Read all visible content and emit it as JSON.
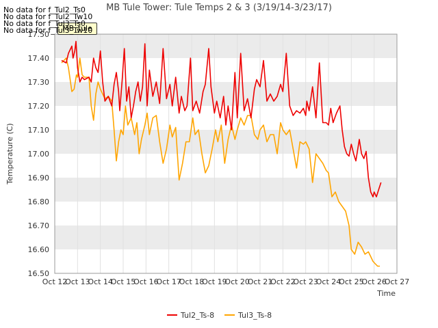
{
  "no_data_messages": [
    "No data for f_Tul2_Ts0",
    "No data for f_Tul2_Tw10",
    "No data for f_Tul3_Ts0",
    "No data for f_Tul3_Tw10"
  ],
  "tooltip": "MB_tule",
  "colors": {
    "tul2": "#ee0000",
    "tul3": "#ffa500",
    "band": "#ebebeb",
    "grid": "#ffffff",
    "axis": "#999999"
  },
  "chart_data": {
    "type": "line",
    "title": "MB Tule Tower: Tule Temps 2 & 3 (3/19/14-3/23/17)",
    "xlabel": "Time",
    "ylabel": "Temperature (C)",
    "ylim": [
      16.5,
      17.5
    ],
    "xlim": [
      0,
      15
    ],
    "x_ticks": [
      "Oct 12",
      "Oct 13",
      "Oct 14",
      "Oct 15",
      "Oct 16",
      "Oct 17",
      "Oct 18",
      "Oct 19",
      "Oct 20",
      "Oct 21",
      "Oct 22",
      "Oct 23",
      "Oct 24",
      "Oct 25",
      "Oct 26",
      "Oct 27"
    ],
    "y_ticks": [
      "16.50",
      "16.60",
      "16.70",
      "16.80",
      "16.90",
      "17.00",
      "17.10",
      "17.20",
      "17.30",
      "17.40",
      "17.50"
    ],
    "legend_position": "bottom",
    "series": [
      {
        "name": "Tul2_Ts-8",
        "x": [
          0.3,
          0.5,
          0.6,
          0.75,
          0.8,
          0.88,
          0.93,
          1.0,
          1.1,
          1.2,
          1.3,
          1.5,
          1.6,
          1.7,
          1.8,
          1.9,
          2.0,
          2.1,
          2.2,
          2.35,
          2.5,
          2.6,
          2.7,
          2.8,
          2.85,
          2.95,
          3.05,
          3.15,
          3.25,
          3.35,
          3.45,
          3.55,
          3.65,
          3.75,
          3.85,
          3.95,
          4.05,
          4.15,
          4.3,
          4.45,
          4.6,
          4.75,
          4.9,
          5.05,
          5.15,
          5.3,
          5.45,
          5.55,
          5.7,
          5.8,
          5.95,
          6.05,
          6.2,
          6.35,
          6.5,
          6.6,
          6.75,
          6.85,
          7.0,
          7.1,
          7.25,
          7.4,
          7.5,
          7.6,
          7.75,
          7.9,
          8.0,
          8.15,
          8.3,
          8.45,
          8.6,
          8.75,
          8.85,
          9.0,
          9.15,
          9.3,
          9.45,
          9.6,
          9.75,
          9.9,
          10.0,
          10.15,
          10.3,
          10.45,
          10.6,
          10.75,
          10.9,
          11.0,
          11.05,
          11.15,
          11.3,
          11.45,
          11.6,
          11.75,
          11.9,
          12.0,
          12.1,
          12.2,
          12.35,
          12.5,
          12.6,
          12.7,
          12.8,
          12.9,
          13.0,
          13.1,
          13.2,
          13.35,
          13.45,
          13.55,
          13.65,
          13.75,
          13.85,
          13.95,
          14.0,
          14.1,
          14.2,
          14.3
        ],
        "values": [
          17.39,
          17.38,
          17.42,
          17.45,
          17.4,
          17.43,
          17.47,
          17.36,
          17.3,
          17.32,
          17.31,
          17.32,
          17.3,
          17.4,
          17.36,
          17.34,
          17.43,
          17.3,
          17.22,
          17.24,
          17.2,
          17.29,
          17.34,
          17.26,
          17.18,
          17.3,
          17.44,
          17.22,
          17.28,
          17.15,
          17.2,
          17.26,
          17.3,
          17.22,
          17.28,
          17.46,
          17.2,
          17.35,
          17.24,
          17.3,
          17.21,
          17.44,
          17.23,
          17.29,
          17.2,
          17.32,
          17.17,
          17.24,
          17.18,
          17.2,
          17.4,
          17.18,
          17.22,
          17.17,
          17.26,
          17.29,
          17.44,
          17.28,
          17.17,
          17.22,
          17.15,
          17.24,
          17.12,
          17.2,
          17.1,
          17.34,
          17.15,
          17.42,
          17.18,
          17.23,
          17.15,
          17.27,
          17.31,
          17.28,
          17.39,
          17.22,
          17.25,
          17.22,
          17.24,
          17.29,
          17.26,
          17.42,
          17.2,
          17.16,
          17.18,
          17.17,
          17.19,
          17.16,
          17.22,
          17.18,
          17.28,
          17.15,
          17.38,
          17.13,
          17.13,
          17.12,
          17.19,
          17.13,
          17.17,
          17.2,
          17.1,
          17.03,
          17.0,
          16.99,
          17.04,
          17.0,
          16.97,
          17.06,
          17.0,
          16.98,
          17.01,
          16.9,
          16.84,
          16.82,
          16.84,
          16.82,
          16.85,
          16.88
        ],
        "color": "#ee0000"
      },
      {
        "name": "Tul3_Ts-8",
        "x": [
          0.3,
          0.5,
          0.6,
          0.75,
          0.85,
          0.95,
          1.0,
          1.1,
          1.2,
          1.3,
          1.5,
          1.6,
          1.7,
          1.8,
          1.9,
          2.0,
          2.1,
          2.2,
          2.35,
          2.5,
          2.6,
          2.7,
          2.8,
          2.9,
          3.0,
          3.1,
          3.2,
          3.35,
          3.5,
          3.6,
          3.7,
          3.8,
          3.95,
          4.05,
          4.15,
          4.3,
          4.45,
          4.6,
          4.75,
          4.9,
          5.05,
          5.15,
          5.3,
          5.45,
          5.6,
          5.75,
          5.9,
          6.05,
          6.15,
          6.3,
          6.45,
          6.6,
          6.75,
          6.9,
          7.05,
          7.15,
          7.3,
          7.45,
          7.6,
          7.75,
          7.9,
          8.0,
          8.15,
          8.3,
          8.45,
          8.6,
          8.75,
          8.9,
          9.0,
          9.15,
          9.3,
          9.45,
          9.6,
          9.75,
          9.9,
          10.0,
          10.15,
          10.3,
          10.45,
          10.6,
          10.75,
          10.9,
          11.0,
          11.15,
          11.3,
          11.45,
          11.6,
          11.75,
          11.9,
          12.0,
          12.15,
          12.3,
          12.45,
          12.6,
          12.75,
          12.9,
          13.0,
          13.15,
          13.3,
          13.45,
          13.6,
          13.75,
          13.85,
          13.95,
          14.05,
          14.15,
          14.25
        ],
        "values": [
          17.38,
          17.4,
          17.36,
          17.26,
          17.27,
          17.33,
          17.32,
          17.4,
          17.33,
          17.32,
          17.32,
          17.2,
          17.14,
          17.25,
          17.3,
          17.27,
          17.25,
          17.23,
          17.24,
          17.22,
          17.1,
          16.97,
          17.05,
          17.1,
          17.08,
          17.2,
          17.12,
          17.15,
          17.08,
          17.13,
          17.0,
          17.06,
          17.12,
          17.17,
          17.08,
          17.15,
          17.16,
          17.05,
          16.96,
          17.02,
          17.12,
          17.07,
          17.11,
          16.89,
          16.96,
          17.05,
          17.05,
          17.15,
          17.08,
          17.1,
          17.0,
          16.92,
          16.95,
          17.02,
          17.1,
          17.05,
          17.12,
          16.96,
          17.06,
          17.12,
          17.06,
          17.1,
          17.15,
          17.12,
          17.16,
          17.16,
          17.08,
          17.06,
          17.1,
          17.12,
          17.05,
          17.08,
          17.08,
          17.0,
          17.13,
          17.1,
          17.08,
          17.1,
          17.02,
          16.94,
          17.05,
          17.04,
          17.05,
          17.02,
          16.88,
          17.0,
          16.98,
          16.96,
          16.93,
          16.92,
          16.82,
          16.84,
          16.8,
          16.78,
          16.76,
          16.7,
          16.6,
          16.58,
          16.63,
          16.61,
          16.58,
          16.59,
          16.57,
          16.55,
          16.54,
          16.53,
          16.53
        ],
        "color": "#ffa500"
      }
    ]
  }
}
